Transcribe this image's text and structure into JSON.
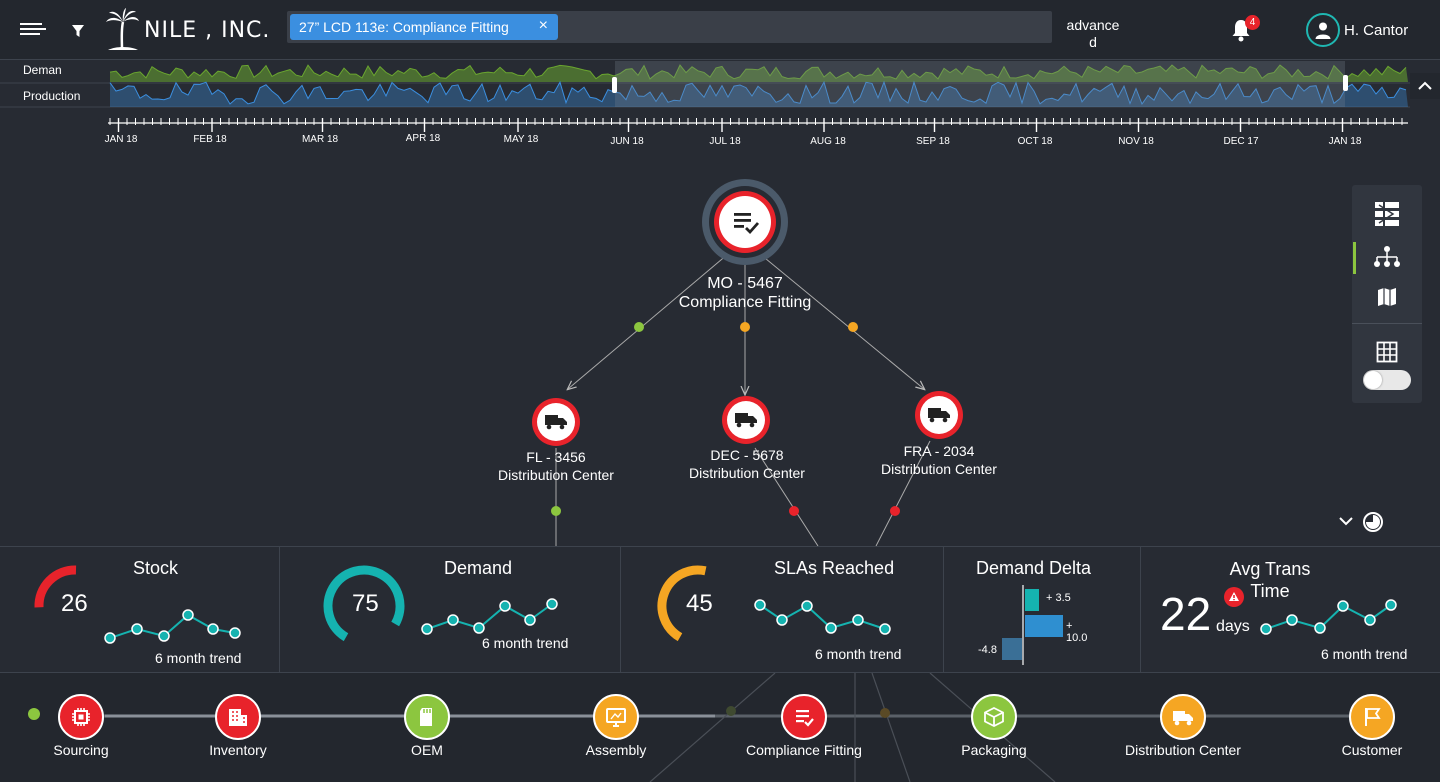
{
  "header": {
    "logo_text": "NILE , INC.",
    "chip_label": "27” LCD 113e: Compliance Fitting",
    "chip_close": "×",
    "advanced_label": "advance\nd",
    "notification_count": "4",
    "user_name": "H. Cantor"
  },
  "timeline": {
    "row_labels": [
      "Deman\nd",
      "Production"
    ],
    "months": [
      "JAN 18",
      "FEB 18",
      "MAR 18",
      "APR 18",
      "MAY 18",
      "JUN 18",
      "JUL 18",
      "AUG 18",
      "SEP 18",
      "OCT 18",
      "NOV 18",
      "DEC 17",
      "JAN 18"
    ]
  },
  "graph": {
    "root": {
      "id": "MO - 5467",
      "name": "Compliance Fitting",
      "icon": "list-check-icon"
    },
    "children": [
      {
        "id": "FL - 3456",
        "name": "Distribution Center",
        "icon": "truck-icon",
        "status_color": "#8cc63f"
      },
      {
        "id": "DEC - 5678",
        "name": "Distribution Center",
        "icon": "truck-icon",
        "status_color": "#f5a623"
      },
      {
        "id": "FRA - 2034",
        "name": "Distribution Center",
        "icon": "truck-icon",
        "status_color": "#f5a623"
      }
    ]
  },
  "kpis": {
    "stock": {
      "title": "Stock",
      "value": "26",
      "trend_label": "6 month trend",
      "color": "#e8232b"
    },
    "demand": {
      "title": "Demand",
      "value": "75",
      "trend_label": "6 month trend",
      "color": "#15b3b0"
    },
    "slas": {
      "title": "SLAs Reached",
      "value": "45",
      "trend_label": "6 month trend",
      "color": "#f5a623"
    },
    "demand_delta": {
      "title": "Demand Delta",
      "labels": [
        "+ 3.5",
        "+\n10.0",
        "-4.8"
      ]
    },
    "avg_trans": {
      "title": "Avg Trans\nTime",
      "value": "22",
      "unit": "days",
      "trend_label": "6 month trend"
    }
  },
  "process": {
    "stages": [
      {
        "label": "Sourcing",
        "color": "#e8232b",
        "icon": "chip-icon"
      },
      {
        "label": "Inventory",
        "color": "#e8232b",
        "icon": "building-icon"
      },
      {
        "label": "OEM",
        "color": "#8cc63f",
        "icon": "sd-card-icon"
      },
      {
        "label": "Assembly",
        "color": "#f5a623",
        "icon": "monitor-icon"
      },
      {
        "label": "Compliance Fitting",
        "color": "#e8232b",
        "icon": "list-check-icon"
      },
      {
        "label": "Packaging",
        "color": "#8cc63f",
        "icon": "box-icon"
      },
      {
        "label": "Distribution Center",
        "color": "#f5a623",
        "icon": "truck-icon"
      },
      {
        "label": "Customer",
        "color": "#f5a623",
        "icon": "flag-icon"
      }
    ]
  },
  "colors": {
    "accent": "#3b8fe0",
    "green": "#8cc63f",
    "orange": "#f5a623",
    "red": "#e8232b",
    "teal": "#15b3b0"
  }
}
